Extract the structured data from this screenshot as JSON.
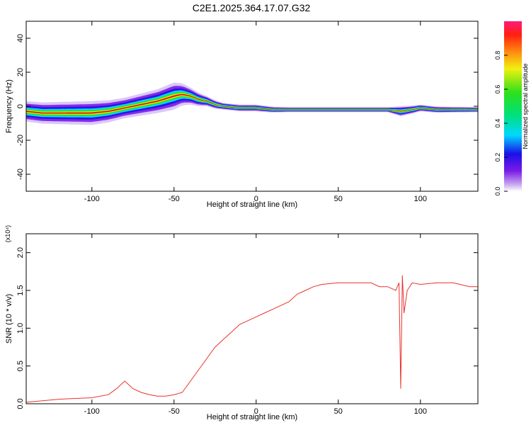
{
  "title": "C2E1.2025.364.17.07.G32",
  "chart_data": [
    {
      "type": "heatmap",
      "xlabel": "Height of straight line (km)",
      "ylabel": "Frequency (Hz)",
      "xlim": [
        -140,
        135
      ],
      "ylim": [
        -50,
        50
      ],
      "xticks": [
        -100,
        -50,
        0,
        50,
        100
      ],
      "xtick_labels": [
        "-100",
        "-50",
        "0",
        "50",
        "100"
      ],
      "yticks": [
        -40,
        -20,
        0,
        20,
        40
      ],
      "ytick_labels": [
        "-40",
        "-20",
        "0",
        "20",
        "40"
      ],
      "colorbar": {
        "label": "Normalized spectral amplitude",
        "range": [
          0,
          1
        ],
        "ticks": [
          0.0,
          0.2,
          0.4,
          0.6,
          0.8
        ],
        "tick_labels": [
          "0.0",
          "0.2",
          "0.4",
          "0.6",
          "0.8"
        ]
      },
      "ridge": {
        "x": [
          -140,
          -130,
          -120,
          -110,
          -100,
          -90,
          -80,
          -70,
          -60,
          -50,
          -45,
          -40,
          -35,
          -30,
          -25,
          -20,
          -10,
          0,
          10,
          20,
          40,
          60,
          80,
          88,
          95,
          100,
          110,
          135
        ],
        "y": [
          -3,
          -4,
          -4,
          -4,
          -4,
          -3,
          -1,
          1,
          3,
          6,
          7,
          6,
          4,
          3,
          1,
          0,
          -1,
          -1,
          -2,
          -2,
          -2,
          -2,
          -2,
          -3,
          -2,
          -1,
          -2,
          -2
        ]
      },
      "spread": {
        "x": [
          -140,
          -100,
          -80,
          -60,
          -50,
          -40,
          -30,
          -20,
          0,
          20,
          80,
          88,
          100,
          135
        ],
        "y": [
          6,
          7,
          6,
          7,
          8,
          5,
          3,
          2,
          2,
          1.5,
          1.5,
          3,
          2,
          1.5
        ]
      }
    },
    {
      "type": "line",
      "xlabel": "Height of straight line (km)",
      "ylabel": "SNR (10 * v/v)",
      "scale_label": "(x10⁴)",
      "xlim": [
        -140,
        135
      ],
      "ylim": [
        0,
        2.25
      ],
      "xticks": [
        -100,
        -50,
        0,
        50,
        100
      ],
      "xtick_labels": [
        "-100",
        "-50",
        "0",
        "50",
        "100"
      ],
      "yticks": [
        0,
        0.5,
        1.0,
        1.5,
        2.0
      ],
      "ytick_labels": [
        "0.0",
        "0.5",
        "1.0",
        "1.5",
        "2.0"
      ],
      "color": "#e8322b",
      "series": [
        {
          "x": [
            -140,
            -130,
            -120,
            -110,
            -100,
            -90,
            -85,
            -80,
            -75,
            -70,
            -65,
            -60,
            -55,
            -50,
            -45,
            -40,
            -35,
            -30,
            -25,
            -20,
            -15,
            -10,
            -5,
            0,
            5,
            10,
            15,
            20,
            25,
            30,
            35,
            40,
            50,
            60,
            70,
            75,
            80,
            85,
            87,
            88,
            89,
            90,
            92,
            95,
            100,
            110,
            120,
            130,
            135
          ],
          "y": [
            0.02,
            0.04,
            0.06,
            0.07,
            0.08,
            0.12,
            0.2,
            0.3,
            0.2,
            0.15,
            0.12,
            0.1,
            0.1,
            0.12,
            0.15,
            0.3,
            0.45,
            0.6,
            0.75,
            0.85,
            0.95,
            1.05,
            1.1,
            1.15,
            1.2,
            1.25,
            1.3,
            1.35,
            1.45,
            1.5,
            1.55,
            1.58,
            1.6,
            1.6,
            1.6,
            1.55,
            1.55,
            1.5,
            1.6,
            0.2,
            1.7,
            1.2,
            1.5,
            1.6,
            1.58,
            1.6,
            1.6,
            1.55,
            1.55
          ]
        }
      ]
    }
  ]
}
